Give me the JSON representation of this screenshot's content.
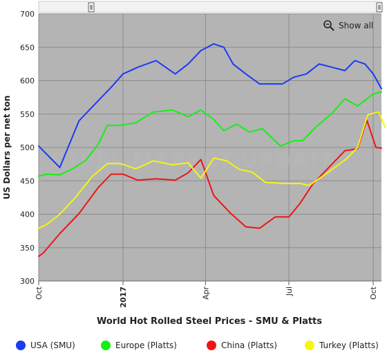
{
  "chart_data": {
    "type": "line",
    "title": "World Hot Rolled Steel Prices - SMU & Platts",
    "ylabel": "US Dollars per net ton",
    "xlabel": "",
    "ylim": [
      300,
      700
    ],
    "yticks": [
      300,
      350,
      400,
      450,
      500,
      550,
      600,
      650,
      700
    ],
    "xlim": [
      "2016-10-01",
      "2017-10-10"
    ],
    "xticks": [
      {
        "date": "2016-10-01",
        "label": "Oct",
        "bold": false
      },
      {
        "date": "2017-01-01",
        "label": "2017",
        "bold": true
      },
      {
        "date": "2017-04-01",
        "label": "Apr",
        "bold": false
      },
      {
        "date": "2017-07-01",
        "label": "Jul",
        "bold": false
      },
      {
        "date": "2017-10-01",
        "label": "Oct",
        "bold": false
      }
    ],
    "grid": true,
    "legend_position": "bottom",
    "series": [
      {
        "name": "USA (SMU)",
        "color": "#1a3af5",
        "points": [
          [
            "2016-10-01",
            502
          ],
          [
            "2016-10-24",
            470
          ],
          [
            "2016-11-14",
            540
          ],
          [
            "2016-12-05",
            570
          ],
          [
            "2016-12-19",
            590
          ],
          [
            "2017-01-01",
            610
          ],
          [
            "2017-01-17",
            620
          ],
          [
            "2017-02-06",
            630
          ],
          [
            "2017-02-27",
            610
          ],
          [
            "2017-03-13",
            625
          ],
          [
            "2017-03-27",
            645
          ],
          [
            "2017-04-10",
            655
          ],
          [
            "2017-04-21",
            650
          ],
          [
            "2017-05-01",
            625
          ],
          [
            "2017-05-15",
            610
          ],
          [
            "2017-05-30",
            595
          ],
          [
            "2017-06-13",
            595
          ],
          [
            "2017-06-24",
            595
          ],
          [
            "2017-07-06",
            605
          ],
          [
            "2017-07-20",
            610
          ],
          [
            "2017-08-03",
            625
          ],
          [
            "2017-08-17",
            620
          ],
          [
            "2017-08-31",
            615
          ],
          [
            "2017-09-11",
            630
          ],
          [
            "2017-09-22",
            625
          ],
          [
            "2017-10-01",
            610
          ],
          [
            "2017-10-10",
            588
          ]
        ]
      },
      {
        "name": "Europe (Platts)",
        "color": "#14f014",
        "points": [
          [
            "2016-10-01",
            457
          ],
          [
            "2016-10-10",
            460
          ],
          [
            "2016-10-24",
            459
          ],
          [
            "2016-11-07",
            468
          ],
          [
            "2016-11-21",
            480
          ],
          [
            "2016-12-05",
            505
          ],
          [
            "2016-12-15",
            533
          ],
          [
            "2016-12-29",
            533
          ],
          [
            "2017-01-15",
            537
          ],
          [
            "2017-02-03",
            553
          ],
          [
            "2017-02-24",
            556
          ],
          [
            "2017-03-13",
            546
          ],
          [
            "2017-03-27",
            556
          ],
          [
            "2017-04-10",
            542
          ],
          [
            "2017-04-21",
            525
          ],
          [
            "2017-05-05",
            535
          ],
          [
            "2017-05-19",
            523
          ],
          [
            "2017-06-02",
            528
          ],
          [
            "2017-06-22",
            502
          ],
          [
            "2017-07-06",
            510
          ],
          [
            "2017-07-16",
            510
          ],
          [
            "2017-07-30",
            530
          ],
          [
            "2017-08-17",
            551
          ],
          [
            "2017-08-31",
            573
          ],
          [
            "2017-09-14",
            562
          ],
          [
            "2017-10-01",
            580
          ],
          [
            "2017-10-10",
            583
          ]
        ]
      },
      {
        "name": "China (Platts)",
        "color": "#f01414",
        "points": [
          [
            "2016-10-01",
            337
          ],
          [
            "2016-10-06",
            342
          ],
          [
            "2016-10-24",
            371
          ],
          [
            "2016-11-14",
            401
          ],
          [
            "2016-12-05",
            440
          ],
          [
            "2016-12-19",
            460
          ],
          [
            "2017-01-01",
            460
          ],
          [
            "2017-01-17",
            451
          ],
          [
            "2017-02-06",
            453
          ],
          [
            "2017-02-27",
            451
          ],
          [
            "2017-03-13",
            462
          ],
          [
            "2017-03-27",
            482
          ],
          [
            "2017-04-10",
            428
          ],
          [
            "2017-04-28",
            402
          ],
          [
            "2017-05-15",
            381
          ],
          [
            "2017-05-30",
            379
          ],
          [
            "2017-06-16",
            396
          ],
          [
            "2017-07-01",
            396
          ],
          [
            "2017-07-13",
            416
          ],
          [
            "2017-07-27",
            445
          ],
          [
            "2017-08-10",
            465
          ],
          [
            "2017-08-31",
            495
          ],
          [
            "2017-09-14",
            498
          ],
          [
            "2017-09-24",
            541
          ],
          [
            "2017-10-04",
            500
          ],
          [
            "2017-10-10",
            499
          ]
        ]
      },
      {
        "name": "Turkey (Platts)",
        "color": "#f5f514",
        "points": [
          [
            "2016-10-01",
            379
          ],
          [
            "2016-10-10",
            385
          ],
          [
            "2016-10-24",
            400
          ],
          [
            "2016-11-10",
            425
          ],
          [
            "2016-11-28",
            456
          ],
          [
            "2016-12-15",
            476
          ],
          [
            "2016-12-29",
            476
          ],
          [
            "2017-01-15",
            468
          ],
          [
            "2017-02-03",
            480
          ],
          [
            "2017-02-24",
            474
          ],
          [
            "2017-03-13",
            477
          ],
          [
            "2017-03-27",
            454
          ],
          [
            "2017-04-10",
            484
          ],
          [
            "2017-04-24",
            480
          ],
          [
            "2017-05-08",
            467
          ],
          [
            "2017-05-22",
            463
          ],
          [
            "2017-06-05",
            448
          ],
          [
            "2017-06-25",
            446
          ],
          [
            "2017-07-13",
            446
          ],
          [
            "2017-07-23",
            443
          ],
          [
            "2017-08-10",
            460
          ],
          [
            "2017-09-01",
            482
          ],
          [
            "2017-09-14",
            500
          ],
          [
            "2017-09-25",
            549
          ],
          [
            "2017-10-07",
            553
          ],
          [
            "2017-10-14",
            530
          ]
        ]
      }
    ]
  },
  "controls": {
    "show_all_label": "Show all"
  },
  "watermark": {
    "text": "STEEL MARKET UPDATE"
  }
}
